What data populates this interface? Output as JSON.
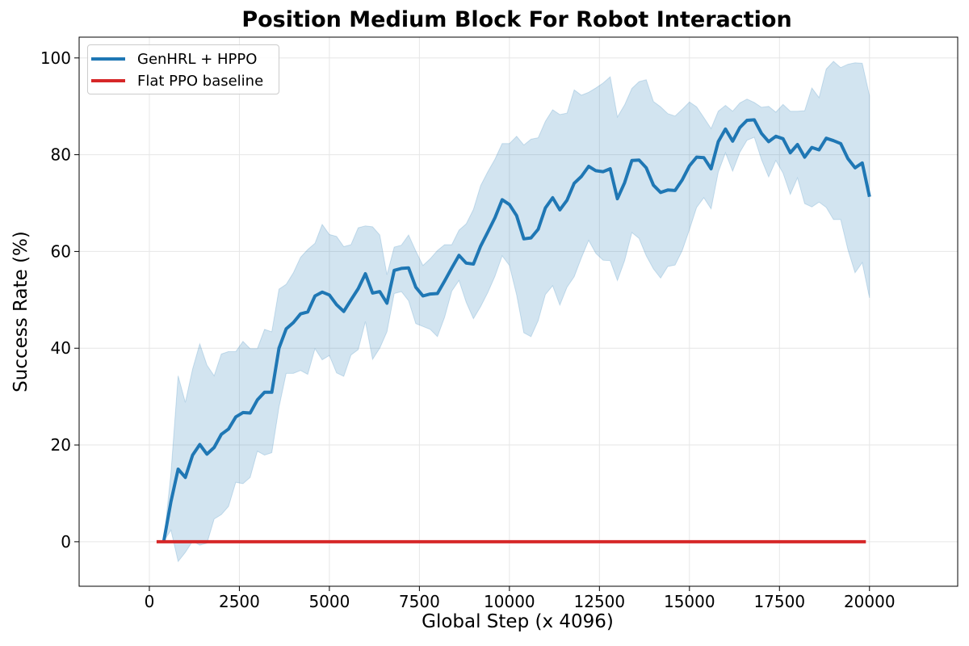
{
  "chart_data": {
    "type": "line",
    "title": "Position Medium Block For Robot Interaction",
    "xlabel": "Global Step (x 4096)",
    "ylabel": "Success Rate (%)",
    "xlim": [
      -1950,
      22450
    ],
    "ylim": [
      -9.2,
      104.3
    ],
    "xticks": [
      0,
      2500,
      5000,
      7500,
      10000,
      12500,
      15000,
      17500,
      20000
    ],
    "xtick_labels": [
      "0",
      "2500",
      "5000",
      "7500",
      "10000",
      "12500",
      "15000",
      "17500",
      "20000"
    ],
    "yticks": [
      0,
      20,
      40,
      60,
      80,
      100
    ],
    "ytick_labels": [
      "0",
      "20",
      "40",
      "60",
      "80",
      "100"
    ],
    "grid": true,
    "legend_position": "upper-left",
    "series": [
      {
        "name": "GenHRL + HPPO",
        "color": "#1f77b4",
        "band_color": "#1f77b4",
        "x": [
          400,
          600,
          800,
          1000,
          1200,
          1400,
          1600,
          1800,
          2000,
          2200,
          2400,
          2600,
          2800,
          3000,
          3200,
          3400,
          3600,
          3800,
          4000,
          4200,
          4400,
          4600,
          4800,
          5000,
          5200,
          5400,
          5600,
          5800,
          6000,
          6200,
          6400,
          6600,
          6800,
          7000,
          7200,
          7400,
          7600,
          7800,
          8000,
          8200,
          8400,
          8600,
          8800,
          9000,
          9200,
          9400,
          9600,
          9800,
          10000,
          10200,
          10400,
          10600,
          10800,
          11000,
          11200,
          11400,
          11600,
          11800,
          12000,
          12200,
          12400,
          12600,
          12800,
          13000,
          13200,
          13400,
          13600,
          13800,
          14000,
          14200,
          14400,
          14600,
          14800,
          15000,
          15200,
          15400,
          15600,
          15800,
          16000,
          16200,
          16400,
          16600,
          16800,
          17000,
          17200,
          17400,
          17600,
          17800,
          18000,
          18200,
          18400,
          18600,
          18800,
          19000,
          19200,
          19400,
          19600,
          19800,
          20000
        ],
        "y": [
          0.1,
          8.3,
          15.0,
          13.3,
          17.9,
          20.1,
          18.1,
          19.5,
          22.2,
          23.3,
          25.8,
          26.7,
          26.6,
          29.3,
          30.9,
          30.9,
          40.0,
          44.0,
          45.3,
          47.1,
          47.5,
          50.8,
          51.6,
          51.0,
          49.0,
          47.6,
          50.0,
          52.3,
          55.4,
          51.4,
          51.7,
          49.3,
          56.1,
          56.5,
          56.6,
          52.6,
          50.8,
          51.2,
          51.3,
          53.9,
          56.6,
          59.2,
          57.6,
          57.4,
          61.1,
          64.0,
          67.0,
          70.7,
          69.7,
          67.4,
          62.6,
          62.8,
          64.6,
          69.0,
          71.1,
          68.6,
          70.6,
          74.1,
          75.5,
          77.6,
          76.7,
          76.5,
          77.1,
          70.9,
          74.2,
          78.8,
          78.9,
          77.3,
          73.7,
          72.2,
          72.7,
          72.6,
          74.8,
          77.7,
          79.5,
          79.4,
          77.1,
          82.7,
          85.3,
          82.8,
          85.6,
          87.1,
          87.2,
          84.4,
          82.7,
          83.8,
          83.3,
          80.4,
          82.1,
          79.5,
          81.5,
          81.0,
          83.4,
          82.9,
          82.3,
          79.2,
          77.3,
          78.3,
          71.3
        ],
        "upper": [
          0.1,
          14.2,
          34.3,
          28.8,
          35.7,
          40.9,
          36.5,
          34.3,
          38.8,
          39.3,
          39.3,
          41.4,
          39.9,
          39.9,
          43.9,
          43.4,
          52.2,
          53.2,
          55.6,
          58.8,
          60.4,
          61.7,
          65.6,
          63.5,
          63.1,
          61.0,
          61.4,
          64.9,
          65.3,
          65.1,
          63.4,
          55.2,
          60.9,
          61.3,
          63.4,
          60.1,
          57.1,
          58.5,
          60.2,
          61.4,
          61.4,
          64.4,
          65.7,
          68.7,
          73.6,
          76.5,
          79.1,
          82.3,
          82.3,
          83.8,
          82.0,
          83.2,
          83.5,
          86.9,
          89.3,
          88.3,
          88.6,
          93.4,
          92.3,
          92.9,
          93.8,
          94.8,
          96.1,
          87.8,
          90.3,
          93.7,
          95.1,
          95.5,
          91.0,
          89.9,
          88.5,
          88.0,
          89.4,
          90.9,
          89.9,
          87.7,
          85.4,
          89.0,
          90.2,
          89.0,
          90.7,
          91.5,
          90.8,
          89.8,
          90.0,
          88.8,
          90.4,
          89.0,
          89.0,
          89.1,
          93.8,
          91.8,
          97.7,
          99.3,
          98.0,
          98.7,
          99.0,
          98.9,
          92.2
        ],
        "lower": [
          0.1,
          2.4,
          -4.1,
          -2.2,
          0.1,
          -0.7,
          -0.3,
          4.7,
          5.6,
          7.3,
          12.3,
          12.0,
          13.3,
          18.7,
          17.9,
          18.4,
          27.8,
          34.8,
          34.8,
          35.4,
          34.6,
          39.9,
          37.6,
          38.5,
          34.9,
          34.2,
          38.6,
          39.7,
          45.5,
          37.7,
          40.0,
          43.4,
          51.3,
          51.7,
          49.8,
          45.1,
          44.5,
          43.9,
          42.4,
          46.4,
          51.8,
          54.0,
          49.5,
          46.1,
          48.6,
          51.5,
          54.9,
          59.1,
          57.1,
          51.0,
          43.2,
          42.4,
          45.7,
          51.1,
          52.9,
          48.9,
          52.6,
          54.8,
          58.7,
          62.3,
          59.6,
          58.2,
          58.1,
          54.0,
          58.1,
          63.9,
          62.7,
          59.1,
          56.4,
          54.5,
          56.9,
          57.2,
          60.2,
          64.5,
          69.1,
          71.1,
          68.8,
          76.4,
          80.4,
          76.6,
          80.5,
          83.0,
          83.6,
          79.0,
          75.4,
          78.8,
          76.2,
          71.8,
          75.2,
          69.9,
          69.2,
          70.2,
          69.1,
          66.6,
          66.6,
          60.4,
          55.6,
          57.7,
          50.4
        ]
      },
      {
        "name": "Flat PPO baseline",
        "color": "#d62728",
        "x": [
          200,
          19900
        ],
        "y": [
          0,
          0
        ]
      }
    ]
  }
}
